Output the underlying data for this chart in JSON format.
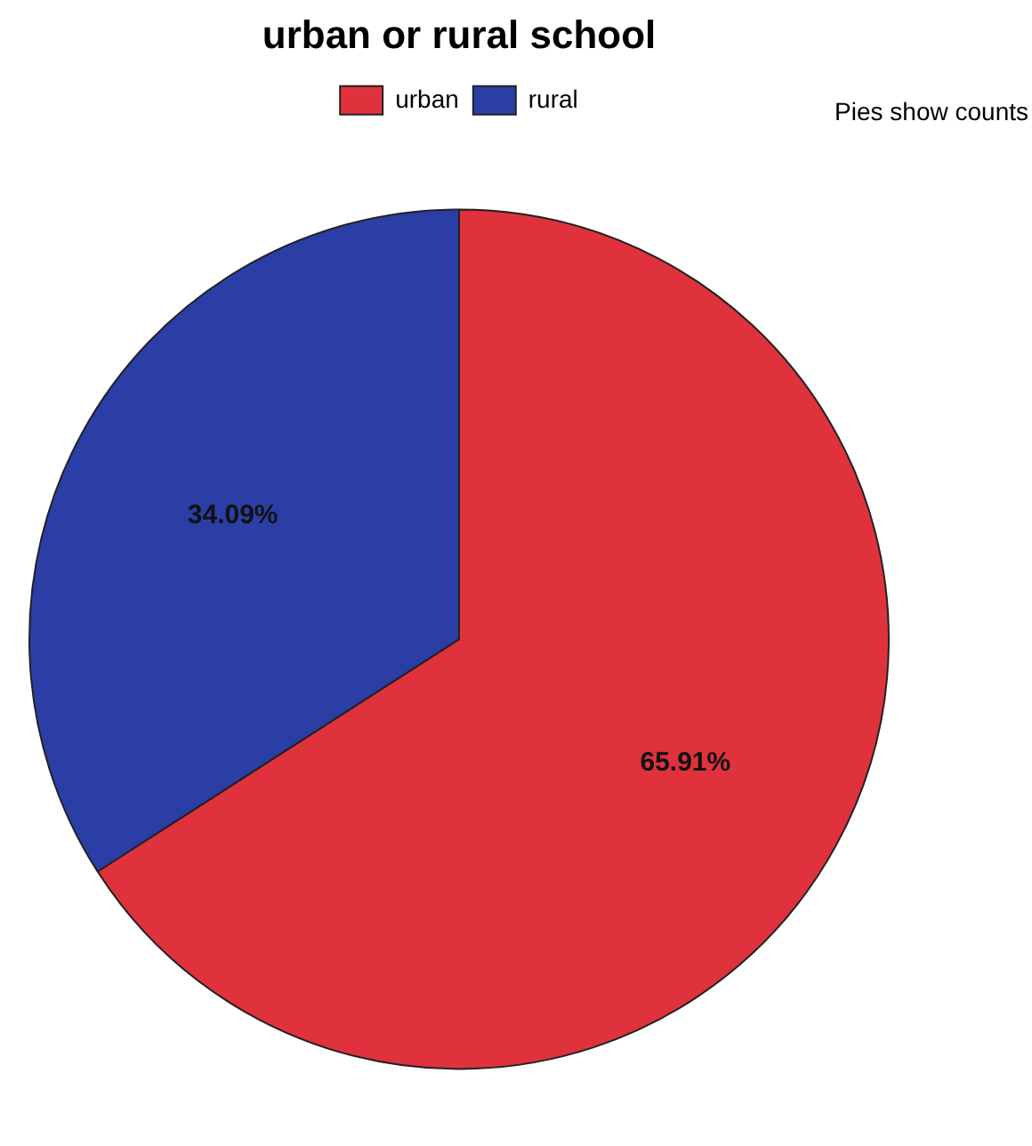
{
  "chart_data": {
    "type": "pie",
    "legend_title": "urban or rural school",
    "categories": [
      "urban",
      "rural"
    ],
    "values": [
      65.91,
      34.09
    ],
    "colors": [
      "#e0323c",
      "#2b3ea6"
    ],
    "value_labels": [
      "65.91%",
      "34.09%"
    ],
    "legend": "top",
    "annotations": [
      "Pies show counts"
    ]
  }
}
